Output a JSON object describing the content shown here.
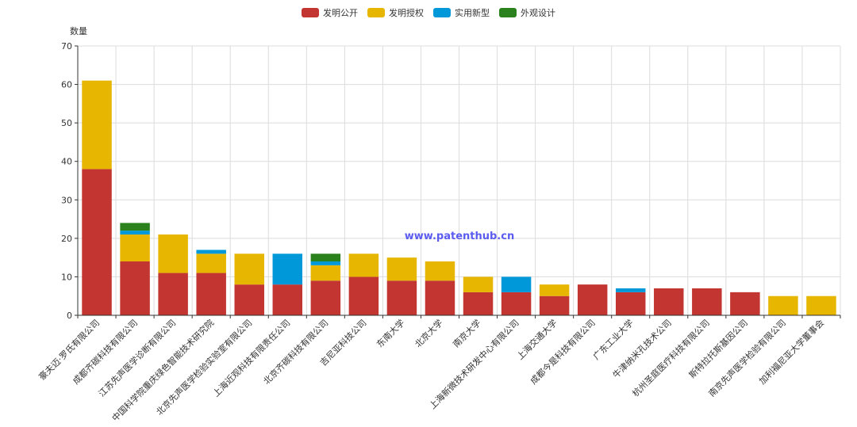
{
  "chart_data": {
    "type": "bar",
    "stacked": true,
    "title": "",
    "xlabel": "",
    "ylabel": "数量",
    "ylim": [
      0,
      70
    ],
    "yticks": [
      0,
      10,
      20,
      30,
      40,
      50,
      60,
      70
    ],
    "grid": true,
    "legend_position": "top-center",
    "watermark": "www.patenthub.cn",
    "categories": [
      "豪夫迈·罗氏有限公司",
      "成都齐碳科技有限公司",
      "江苏先声医学诊断有限公司",
      "中国科学院重庆绿色智能技术研究院",
      "北京先声医学检验实验室有限公司",
      "上海近观科技有限责任公司",
      "北京齐碳科技有限公司",
      "吉尼亚科技公司",
      "东南大学",
      "北京大学",
      "南京大学",
      "上海新微技术研发中心有限公司",
      "上海交通大学",
      "成都今是科技有限公司",
      "广东工业大学",
      "牛津纳米孔技术公司",
      "杭州圣庭医疗科技有限公司",
      "斯特拉托斯基因公司",
      "南京先声医学检验有限公司",
      "加利福尼亚大学董事会"
    ],
    "series": [
      {
        "name": "发明公开",
        "color": "#c23531",
        "values": [
          38,
          14,
          11,
          11,
          8,
          8,
          9,
          10,
          9,
          9,
          6,
          6,
          5,
          8,
          6,
          7,
          7,
          6,
          0,
          0
        ]
      },
      {
        "name": "发明授权",
        "color": "#e6b600",
        "values": [
          23,
          7,
          10,
          5,
          8,
          0,
          4,
          6,
          6,
          5,
          4,
          0,
          3,
          0,
          0,
          0,
          0,
          0,
          5,
          5
        ]
      },
      {
        "name": "实用新型",
        "color": "#0098d9",
        "values": [
          0,
          1,
          0,
          1,
          0,
          8,
          1,
          0,
          0,
          0,
          0,
          4,
          0,
          0,
          1,
          0,
          0,
          0,
          0,
          0
        ]
      },
      {
        "name": "外观设计",
        "color": "#2b821d",
        "values": [
          0,
          2,
          0,
          0,
          0,
          0,
          2,
          0,
          0,
          0,
          0,
          0,
          0,
          0,
          0,
          0,
          0,
          0,
          0,
          0
        ]
      }
    ]
  }
}
